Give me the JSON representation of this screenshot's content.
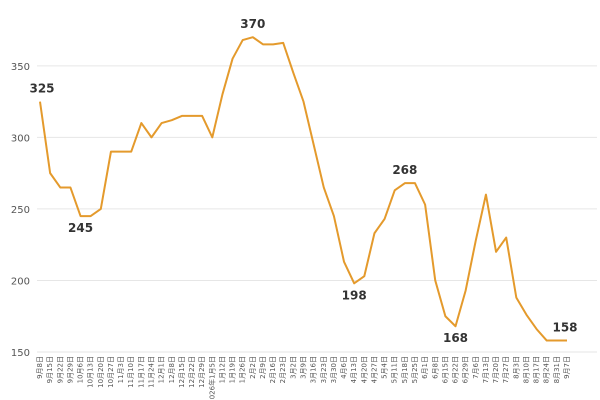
{
  "chart_data": {
    "type": "line",
    "categories": [
      "9月8日",
      "9月15日",
      "9月22日",
      "9月29日",
      "10月6日",
      "10月13日",
      "10月20日",
      "10月27日",
      "11月3日",
      "11月10日",
      "11月17日",
      "11月24日",
      "12月1日",
      "12月8日",
      "12月15日",
      "12月22日",
      "12月29日",
      "2026年1月5日",
      "1月12日",
      "1月19日",
      "1月26日",
      "2月2日",
      "2月9日",
      "2月16日",
      "2月23日",
      "3月2日",
      "3月9日",
      "3月16日",
      "3月23日",
      "3月30日",
      "4月6日",
      "4月13日",
      "4月20日",
      "4月27日",
      "5月4日",
      "5月11日",
      "5月18日",
      "5月25日",
      "6月1日",
      "6月8日",
      "6月15日",
      "6月22日",
      "6月29日",
      "7月6日",
      "7月13日",
      "7月20日",
      "7月27日",
      "8月3日",
      "8月10日",
      "8月17日",
      "8月24日",
      "8月31日",
      "9月7日"
    ],
    "series": [
      {
        "color": "#e49a2c",
        "values": [
          325,
          275,
          265,
          265,
          245,
          245,
          250,
          290,
          290,
          290,
          310,
          300,
          310,
          312,
          315,
          315,
          315,
          300,
          330,
          355,
          368,
          370,
          365,
          365,
          366,
          345,
          325,
          295,
          265,
          245,
          213,
          198,
          203,
          233,
          243,
          263,
          268,
          268,
          253,
          200,
          175,
          168,
          193,
          228,
          260,
          220,
          230,
          188,
          176,
          166,
          158,
          158,
          158
        ]
      }
    ],
    "labeled_indices": [
      0,
      4,
      21,
      31,
      36,
      41,
      52
    ],
    "ylim": [
      150,
      396
    ],
    "yticks": [
      150,
      200,
      250,
      300,
      350
    ],
    "grid": true
  }
}
